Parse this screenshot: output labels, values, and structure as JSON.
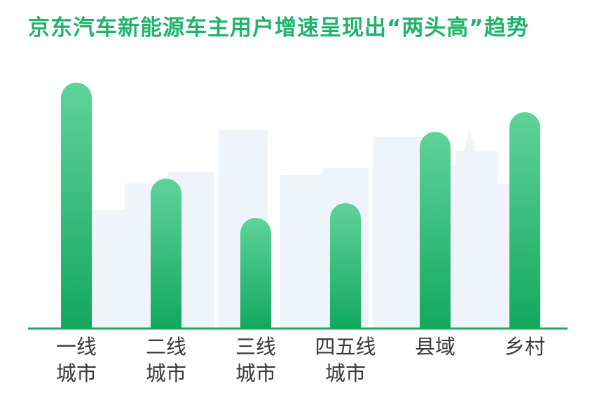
{
  "title": "京东汽车新能源车主用户增速呈现出“两头高”趋势",
  "chart_data": {
    "type": "bar",
    "title": "京东汽车新能源车主用户增速呈现出“两头高”趋势",
    "categories": [
      [
        "一线",
        "城市"
      ],
      [
        "二线",
        "城市"
      ],
      [
        "三线",
        "城市"
      ],
      [
        "四五线",
        "城市"
      ],
      [
        "县域"
      ],
      [
        "乡村"
      ]
    ],
    "values": [
      100,
      61,
      45,
      51,
      80,
      88
    ],
    "ylim": [
      0,
      100
    ],
    "grid": false,
    "legend": "none",
    "colors": {
      "title": "#21b36b",
      "bar_top": "#5fd39a",
      "bar_bottom": "#13a85e",
      "axis": "#19a860",
      "label": "#3a3a3a",
      "skyline": "#eef4fa"
    }
  }
}
